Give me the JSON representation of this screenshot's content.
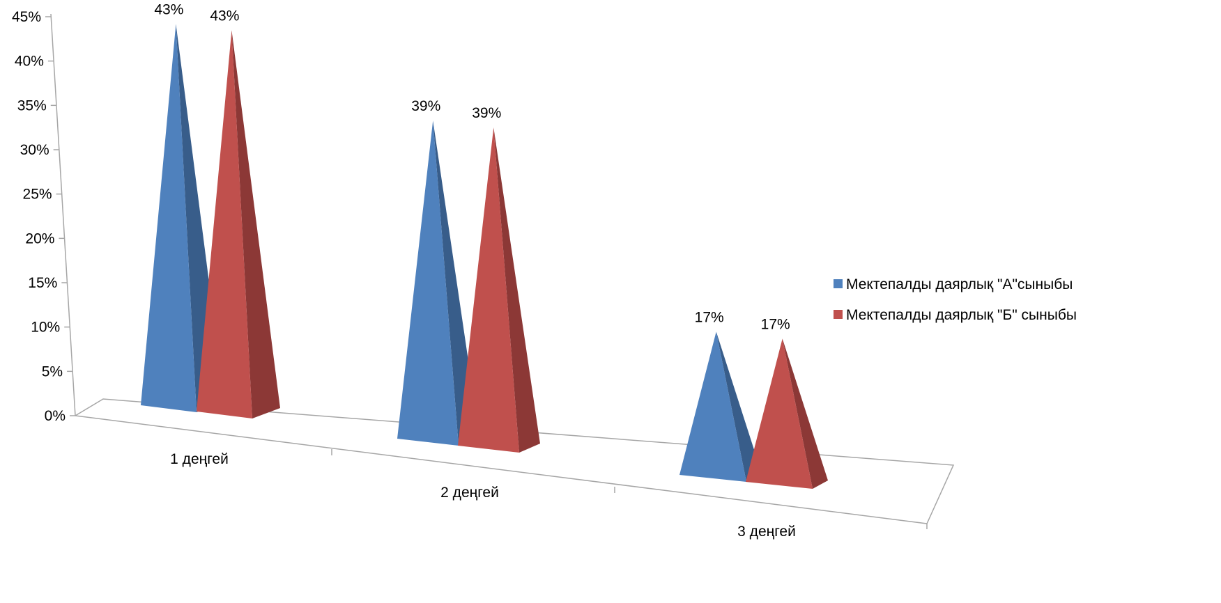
{
  "chart_data": {
    "type": "bar",
    "style": "3d-pyramid",
    "categories": [
      "1 деңгей",
      "2 деңгей",
      "3 деңгей"
    ],
    "series": [
      {
        "name": "Мектепалды даярлық \"А\"сыныбы",
        "values": [
          43,
          39,
          17
        ],
        "color": "#4f81bd",
        "shadow": "#385d8a"
      },
      {
        "name": "Мектепалды даярлық \"Б\" сыныбы",
        "values": [
          43,
          39,
          17
        ],
        "color": "#c0504d",
        "shadow": "#8c3836"
      }
    ],
    "data_labels": [
      [
        "43%",
        "39%",
        "17%"
      ],
      [
        "43%",
        "39%",
        "17%"
      ]
    ],
    "yticks": [
      "0%",
      "5%",
      "10%",
      "15%",
      "20%",
      "25%",
      "30%",
      "35%",
      "40%",
      "45%"
    ],
    "ylim": [
      0,
      45
    ],
    "legend_position": "right",
    "grid": false,
    "title": "",
    "xlabel": "",
    "ylabel": ""
  }
}
